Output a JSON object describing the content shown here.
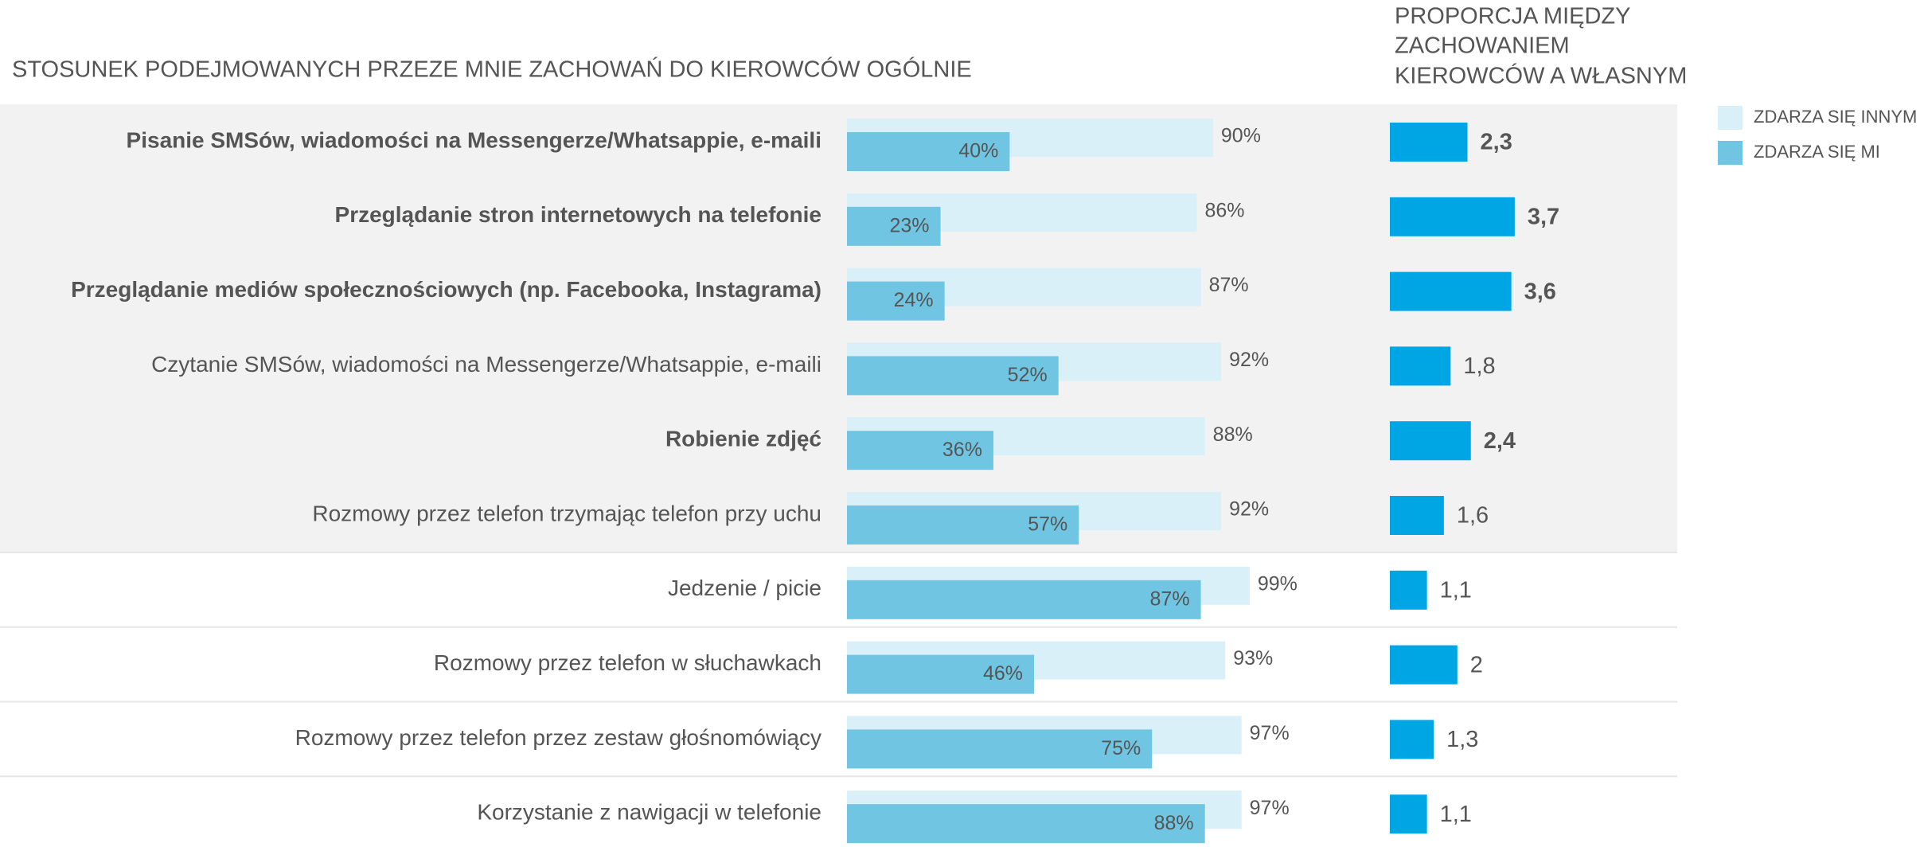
{
  "chart_data": {
    "type": "bar",
    "title": "STOSUNEK PODEJMOWANYCH PRZEZE MNIE ZACHOWAŃ DO KIEROWCÓW OGÓLNIE",
    "categories": [
      "Pisanie  SMSów, wiadomości na Messengerze/Whatsappie, e-maili",
      "Przeglądanie stron internetowych na telefonie",
      "Przeglądanie mediów społecznościowych (np. Facebooka, Instagrama)",
      "Czytanie SMSów, wiadomości na Messengerze/Whatsappie, e-maili",
      "Robienie zdjęć",
      "Rozmowy przez telefon trzymając telefon przy uchu",
      "Jedzenie / picie",
      "Rozmowy przez telefon w słuchawkach",
      "Rozmowy przez telefon przez zestaw głośnomówiący",
      "Korzystanie z nawigacji w telefonie"
    ],
    "emphasis": [
      true,
      true,
      true,
      false,
      true,
      false,
      false,
      false,
      false,
      false
    ],
    "shaded": [
      true,
      true,
      true,
      true,
      true,
      true,
      false,
      false,
      false,
      false
    ],
    "xlim": [
      0,
      100
    ],
    "series": [
      {
        "name": "ZDARZA SIĘ INNYM",
        "color": "#d9f0f8",
        "values": [
          90,
          86,
          87,
          92,
          88,
          92,
          99,
          93,
          97,
          97
        ],
        "value_labels": [
          "90%",
          "86%",
          "87%",
          "92%",
          "88%",
          "92%",
          "99%",
          "93%",
          "97%",
          "97%"
        ]
      },
      {
        "name": "ZDARZA SIĘ MI",
        "color": "#6fc5e2",
        "values": [
          40,
          23,
          24,
          52,
          36,
          57,
          87,
          46,
          75,
          88
        ],
        "value_labels": [
          "40%",
          "23%",
          "24%",
          "52%",
          "36%",
          "57%",
          "87%",
          "46%",
          "75%",
          "88%"
        ]
      }
    ],
    "ratio": {
      "title": [
        "PROPORCJA MIĘDZY",
        "ZACHOWANIEM",
        "KIEROWCÓW A WŁASNYM"
      ],
      "color": "#00a5e3",
      "values": [
        2.3,
        3.7,
        3.6,
        1.8,
        2.4,
        1.6,
        1.1,
        2,
        1.3,
        1.1
      ],
      "value_labels": [
        "2,3",
        "3,7",
        "3,6",
        "1,8",
        "2,4",
        "1,6",
        "1,1",
        "2",
        "1,3",
        "1,1"
      ]
    }
  }
}
